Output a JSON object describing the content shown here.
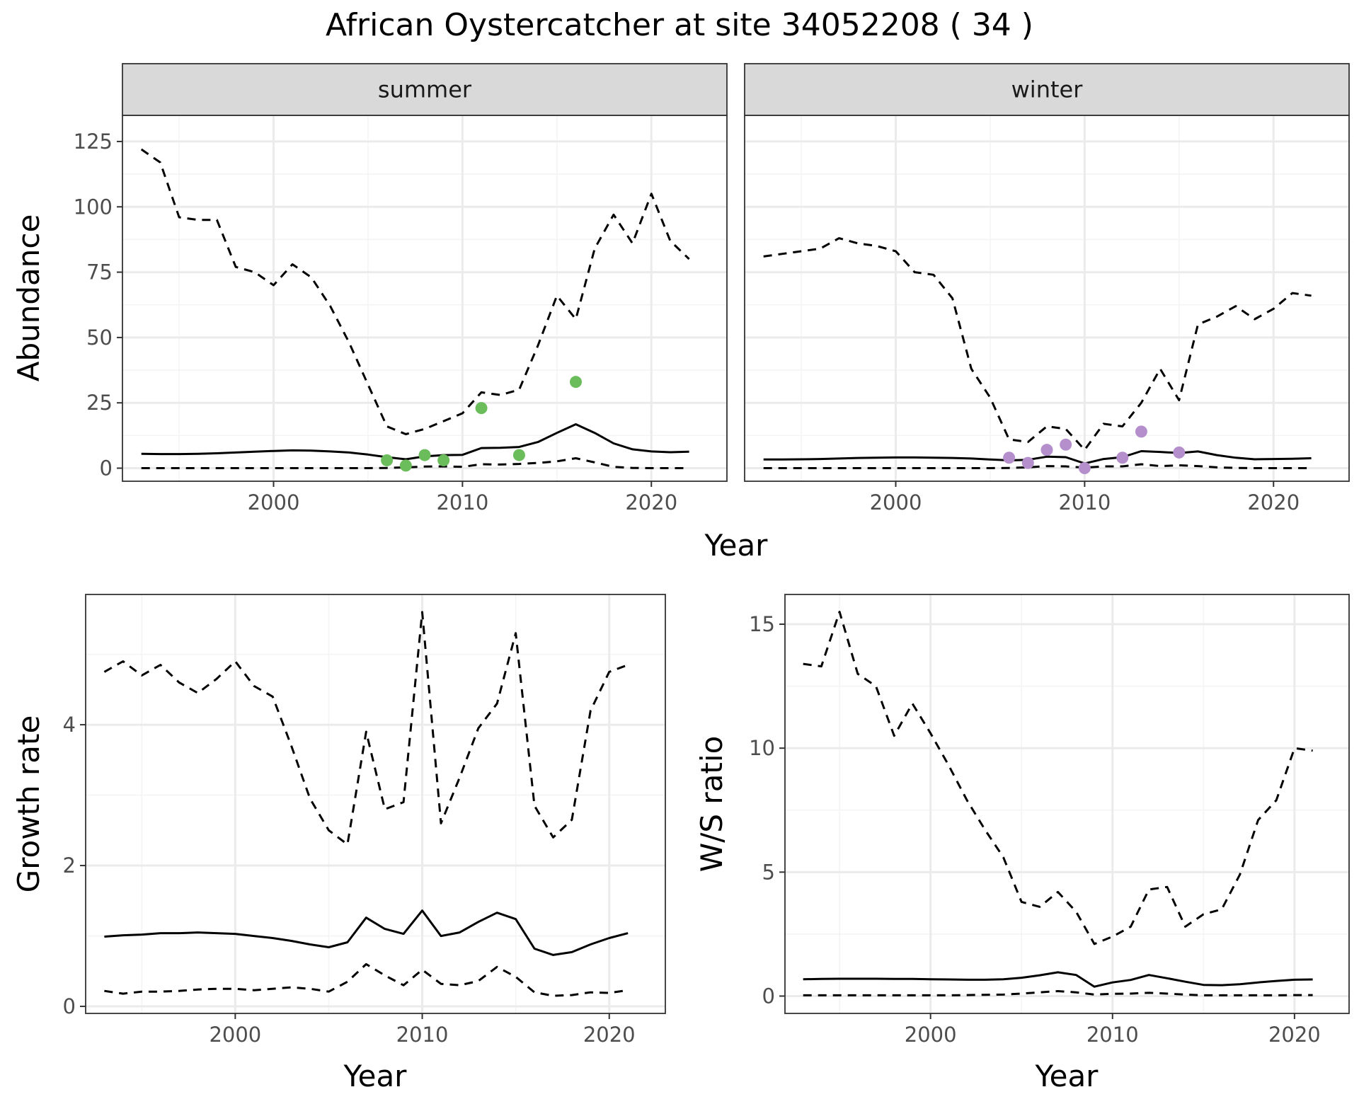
{
  "title": "African Oystercatcher at site 34052208 ( 34 )",
  "colors": {
    "summer_points": "#6BBD5B",
    "winter_points": "#B48FCB",
    "line": "#000000",
    "strip_bg": "#D9D9D9",
    "grid_major": "#EBEBEB",
    "grid_minor": "#F4F4F4",
    "panel_border": "#333333"
  },
  "chart_data": [
    {
      "id": "abundance",
      "type": "line",
      "facets": [
        "summer",
        "winter"
      ],
      "xlabel": "Year",
      "ylabel": "Abundance",
      "xlim": [
        1992,
        2024
      ],
      "ylim": [
        -5,
        135
      ],
      "xticks": [
        2000,
        2010,
        2020
      ],
      "yticks": [
        0,
        25,
        50,
        75,
        100,
        125
      ],
      "grid": true,
      "panels": [
        {
          "facet": "summer",
          "x": [
            1993,
            1994,
            1995,
            1996,
            1997,
            1998,
            1999,
            2000,
            2001,
            2002,
            2003,
            2004,
            2005,
            2006,
            2007,
            2008,
            2009,
            2010,
            2011,
            2012,
            2013,
            2014,
            2015,
            2016,
            2017,
            2018,
            2019,
            2020,
            2021,
            2022
          ],
          "series": [
            {
              "style": "dashed",
              "values": [
                122,
                117,
                96,
                95,
                95,
                77,
                75,
                70,
                78,
                73,
                62,
                48,
                32,
                16,
                13,
                15,
                18,
                21,
                29,
                28,
                30,
                47,
                66,
                57,
                84,
                97,
                86,
                105,
                87,
                80
              ]
            },
            {
              "style": "solid",
              "values": [
                5.5,
                5.4,
                5.4,
                5.5,
                5.7,
                6.0,
                6.3,
                6.6,
                6.8,
                6.7,
                6.4,
                6.0,
                5.2,
                4.2,
                3.4,
                4.5,
                5.0,
                5.1,
                7.7,
                7.8,
                8.1,
                10,
                13.5,
                16.8,
                13.5,
                9.5,
                7.2,
                6.4,
                6.1,
                6.3
              ]
            },
            {
              "style": "dashed",
              "values": [
                0,
                0,
                0,
                0,
                0,
                0,
                0,
                0,
                0,
                0,
                0,
                0,
                0,
                0.1,
                0.3,
                0.6,
                0.7,
                0.5,
                1.5,
                1.4,
                1.6,
                2.0,
                2.6,
                3.8,
                2.2,
                0.5,
                0.1,
                0,
                0,
                0
              ]
            }
          ],
          "points": {
            "x": [
              2006,
              2007,
              2008,
              2009,
              2011,
              2013,
              2016
            ],
            "y": [
              3,
              1,
              5,
              3,
              23,
              5,
              33
            ]
          }
        },
        {
          "facet": "winter",
          "x": [
            1993,
            1994,
            1995,
            1996,
            1997,
            1998,
            1999,
            2000,
            2001,
            2002,
            2003,
            2004,
            2005,
            2006,
            2007,
            2008,
            2009,
            2010,
            2011,
            2012,
            2013,
            2014,
            2015,
            2016,
            2017,
            2018,
            2019,
            2020,
            2021,
            2022
          ],
          "series": [
            {
              "style": "dashed",
              "values": [
                81,
                82,
                83,
                84,
                88,
                86,
                85,
                83,
                75,
                74,
                65,
                38,
                27,
                11,
                10,
                16,
                15,
                7,
                17,
                16,
                25,
                38,
                26,
                55,
                58,
                62,
                57,
                61,
                67,
                66
              ]
            },
            {
              "style": "solid",
              "values": [
                3.3,
                3.3,
                3.4,
                3.5,
                3.7,
                3.9,
                4.0,
                4.1,
                4.1,
                4.0,
                3.9,
                3.7,
                3.3,
                3.0,
                3.2,
                4.4,
                4.2,
                1.8,
                3.5,
                4.2,
                6.5,
                6.2,
                5.8,
                6.4,
                5.0,
                4.0,
                3.4,
                3.5,
                3.6,
                3.8
              ]
            },
            {
              "style": "dashed",
              "values": [
                0,
                0,
                0,
                0,
                0,
                0,
                0,
                0,
                0,
                0,
                0,
                0,
                0,
                0.1,
                0.3,
                0.8,
                0.7,
                0.2,
                0.7,
                0.7,
                1.5,
                0.8,
                1.1,
                0.8,
                0.3,
                0.1,
                0,
                0,
                0,
                0
              ]
            }
          ],
          "points": {
            "x": [
              2006,
              2007,
              2008,
              2009,
              2010,
              2012,
              2013,
              2015
            ],
            "y": [
              4,
              2,
              7,
              9,
              0,
              4,
              14,
              6
            ]
          }
        }
      ]
    },
    {
      "id": "growth",
      "type": "line",
      "xlabel": "Year",
      "ylabel": "Growth rate",
      "xlim": [
        1992,
        2023
      ],
      "ylim": [
        -0.1,
        5.85
      ],
      "xticks": [
        2000,
        2010,
        2020
      ],
      "yticks": [
        0,
        2,
        4
      ],
      "grid": true,
      "x": [
        1993,
        1994,
        1995,
        1996,
        1997,
        1998,
        1999,
        2000,
        2001,
        2002,
        2003,
        2004,
        2005,
        2006,
        2007,
        2008,
        2009,
        2010,
        2011,
        2012,
        2013,
        2014,
        2015,
        2016,
        2017,
        2018,
        2019,
        2020,
        2021
      ],
      "series": [
        {
          "style": "dashed",
          "values": [
            4.75,
            4.9,
            4.7,
            4.85,
            4.6,
            4.45,
            4.65,
            4.9,
            4.55,
            4.4,
            3.7,
            2.95,
            2.5,
            2.3,
            3.9,
            2.8,
            2.9,
            5.6,
            2.6,
            3.25,
            3.95,
            4.3,
            5.3,
            2.85,
            2.4,
            2.65,
            4.2,
            4.75,
            4.85
          ]
        },
        {
          "style": "solid",
          "values": [
            0.99,
            1.01,
            1.02,
            1.04,
            1.04,
            1.05,
            1.04,
            1.03,
            1.0,
            0.97,
            0.93,
            0.88,
            0.84,
            0.91,
            1.26,
            1.1,
            1.03,
            1.36,
            1.0,
            1.05,
            1.2,
            1.33,
            1.24,
            0.82,
            0.73,
            0.77,
            0.88,
            0.97,
            1.04
          ]
        },
        {
          "style": "dashed",
          "values": [
            0.22,
            0.18,
            0.21,
            0.21,
            0.22,
            0.24,
            0.25,
            0.25,
            0.23,
            0.25,
            0.27,
            0.25,
            0.21,
            0.35,
            0.6,
            0.44,
            0.3,
            0.52,
            0.32,
            0.3,
            0.36,
            0.56,
            0.42,
            0.2,
            0.15,
            0.16,
            0.2,
            0.19,
            0.23
          ]
        }
      ]
    },
    {
      "id": "ws_ratio",
      "type": "line",
      "xlabel": "Year",
      "ylabel": "W/S ratio",
      "xlim": [
        1992,
        2023
      ],
      "ylim": [
        -0.7,
        16.2
      ],
      "xticks": [
        2000,
        2010,
        2020
      ],
      "yticks": [
        0,
        5,
        10,
        15
      ],
      "grid": true,
      "x": [
        1993,
        1994,
        1995,
        1996,
        1997,
        1998,
        1999,
        2000,
        2001,
        2002,
        2003,
        2004,
        2005,
        2006,
        2007,
        2008,
        2009,
        2010,
        2011,
        2012,
        2013,
        2014,
        2015,
        2016,
        2017,
        2018,
        2019,
        2020,
        2021
      ],
      "series": [
        {
          "style": "dashed",
          "values": [
            13.4,
            13.3,
            15.5,
            13.0,
            12.5,
            10.5,
            11.8,
            10.6,
            9.3,
            7.9,
            6.7,
            5.6,
            3.8,
            3.6,
            4.2,
            3.4,
            2.1,
            2.4,
            2.8,
            4.3,
            4.4,
            2.8,
            3.3,
            3.5,
            4.9,
            7.1,
            7.9,
            10.0,
            9.9
          ]
        },
        {
          "style": "solid",
          "values": [
            0.68,
            0.69,
            0.7,
            0.7,
            0.7,
            0.69,
            0.69,
            0.68,
            0.67,
            0.66,
            0.66,
            0.68,
            0.74,
            0.84,
            0.96,
            0.85,
            0.38,
            0.55,
            0.65,
            0.85,
            0.72,
            0.58,
            0.45,
            0.44,
            0.48,
            0.55,
            0.61,
            0.66,
            0.67
          ]
        },
        {
          "style": "dashed",
          "values": [
            0.03,
            0.03,
            0.03,
            0.03,
            0.03,
            0.03,
            0.03,
            0.03,
            0.03,
            0.04,
            0.05,
            0.06,
            0.1,
            0.15,
            0.2,
            0.15,
            0.06,
            0.09,
            0.1,
            0.13,
            0.1,
            0.06,
            0.03,
            0.03,
            0.03,
            0.03,
            0.03,
            0.04,
            0.04
          ]
        }
      ]
    }
  ]
}
